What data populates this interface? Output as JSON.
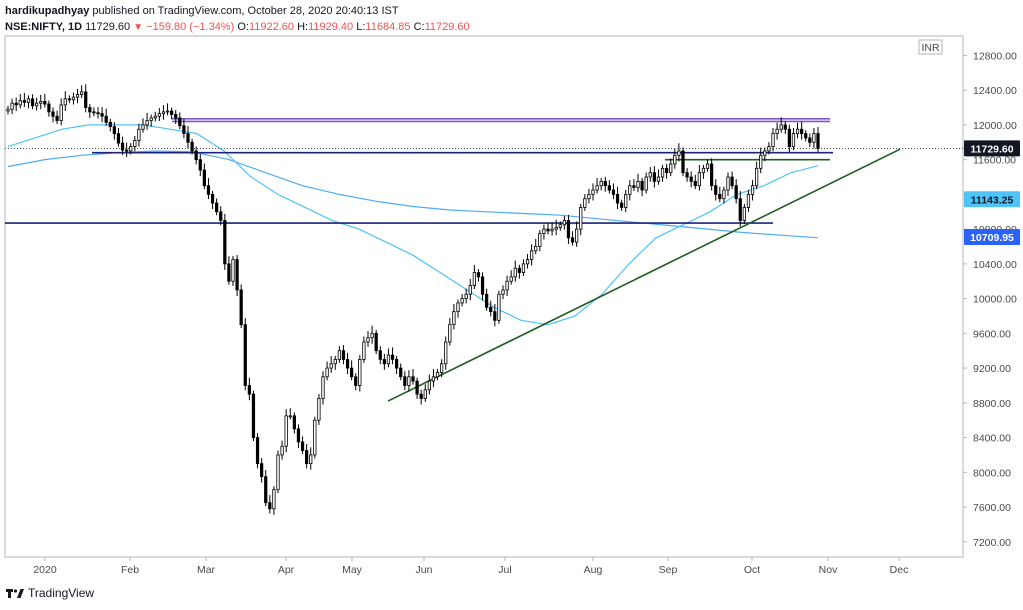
{
  "header": {
    "author": "hardikupadhyay",
    "published_text": "published on TradingView.com, October 28, 2020 20:40:13 IST",
    "symbol": "NSE:NIFTY, 1D",
    "last_price": "11729.60",
    "change": "−159.80 (−1.34%)",
    "o_label": "O:",
    "o_value": "11922.60",
    "h_label": "H:",
    "h_value": "11929.40",
    "l_label": "L:",
    "l_value": "11684.85",
    "c_label": "C:",
    "c_value": "11729.60"
  },
  "footer": {
    "brand": "TradingView"
  },
  "chart_data": {
    "type": "candlestick",
    "currency_label": "INR",
    "y_ticks": [
      7200,
      7600,
      8000,
      8400,
      8800,
      9200,
      9600,
      10000,
      10400,
      10800,
      11200,
      11600,
      12000,
      12400,
      12800
    ],
    "x_labels": [
      "2020",
      "Feb",
      "Mar",
      "Apr",
      "May",
      "Jun",
      "Jul",
      "Aug",
      "Sep",
      "Oct",
      "Nov",
      "Dec"
    ],
    "price_tags": [
      {
        "value": 11729.6,
        "label": "11729.60",
        "bg": "#131722",
        "fg": "#ffffff"
      },
      {
        "value": 11143.25,
        "label": "11143.25",
        "bg": "#4fc3f7",
        "fg": "#131722"
      },
      {
        "value": 10709.95,
        "label": "10709.95",
        "bg": "#2962ff",
        "fg": "#ffffff"
      }
    ],
    "closes": [
      12180,
      12250,
      12230,
      12280,
      12260,
      12300,
      12220,
      12250,
      12270,
      12240,
      12150,
      12100,
      12050,
      12230,
      12300,
      12290,
      12320,
      12350,
      12380,
      12200,
      12150,
      12140,
      12130,
      12100,
      12030,
      11980,
      11900,
      11790,
      11710,
      11700,
      11750,
      11820,
      11950,
      12000,
      12050,
      12080,
      12100,
      12130,
      12150,
      12160,
      12120,
      12080,
      11990,
      11900,
      11800,
      11700,
      11600,
      11480,
      11300,
      11200,
      11100,
      11000,
      10900,
      10400,
      10200,
      10450,
      10100,
      9700,
      9000,
      8900,
      8400,
      8100,
      7950,
      7650,
      7580,
      7800,
      8200,
      8300,
      8650,
      8650,
      8500,
      8350,
      8250,
      8100,
      8200,
      8600,
      8850,
      9100,
      9200,
      9250,
      9300,
      9400,
      9300,
      9200,
      9100,
      9000,
      9300,
      9500,
      9550,
      9600,
      9400,
      9300,
      9250,
      9350,
      9300,
      9200,
      9100,
      9000,
      9100,
      9050,
      8900,
      8850,
      8950,
      9050,
      9100,
      9150,
      9250,
      9500,
      9700,
      9850,
      9950,
      10000,
      10050,
      10150,
      10300,
      10250,
      10050,
      9900,
      9850,
      9750,
      10050,
      10100,
      10200,
      10250,
      10350,
      10300,
      10400,
      10450,
      10550,
      10600,
      10750,
      10800,
      10780,
      10800,
      10820,
      10850,
      10900,
      10700,
      10650,
      10800,
      11050,
      11150,
      11200,
      11250,
      11300,
      11350,
      11300,
      11250,
      11200,
      11100,
      11050,
      11200,
      11300,
      11280,
      11350,
      11250,
      11400,
      11450,
      11350,
      11400,
      11500,
      11450,
      11550,
      11650,
      11700,
      11450,
      11400,
      11350,
      11300,
      11450,
      11500,
      11550,
      11300,
      11200,
      11150,
      11250,
      11400,
      11300,
      11150,
      10900,
      11050,
      11200,
      11300,
      11500,
      11650,
      11700,
      11750,
      11900,
      11950,
      12000,
      11950,
      11750,
      11900,
      11950,
      11900,
      11850,
      11800,
      11900,
      11729.6
    ],
    "ma_fast": [
      11750,
      11850,
      11950,
      12000,
      12000,
      12000,
      11950,
      11900,
      11700,
      11400,
      11200,
      11050,
      10900,
      10800,
      10650,
      10500,
      10300,
      10100,
      9900,
      9750,
      9700,
      9800,
      10050,
      10400,
      10700,
      10850,
      11000,
      11200,
      11300,
      11450,
      11530
    ],
    "ma_slow": [
      11520,
      11600,
      11650,
      11680,
      11700,
      11690,
      11600,
      11450,
      11300,
      11200,
      11120,
      11060,
      11020,
      11000,
      10980,
      10960,
      10920,
      10880,
      10840,
      10800,
      10760,
      10730,
      10700
    ],
    "horizontal_levels": [
      {
        "value": 12070,
        "color": "#7e57c2",
        "name": "resistance-upper"
      },
      {
        "value": 12040,
        "color": "#7e57c2",
        "name": "resistance-lower"
      },
      {
        "value": 11680,
        "color": "#1a237e",
        "name": "support-blue"
      },
      {
        "value": 11600,
        "color": "#1b5e20",
        "name": "support-green"
      },
      {
        "value": 10870,
        "color": "#1a237e",
        "name": "support-deep"
      }
    ],
    "trendline": {
      "from_value": 8820,
      "to_value": 11720,
      "color": "#1b5e20"
    }
  }
}
